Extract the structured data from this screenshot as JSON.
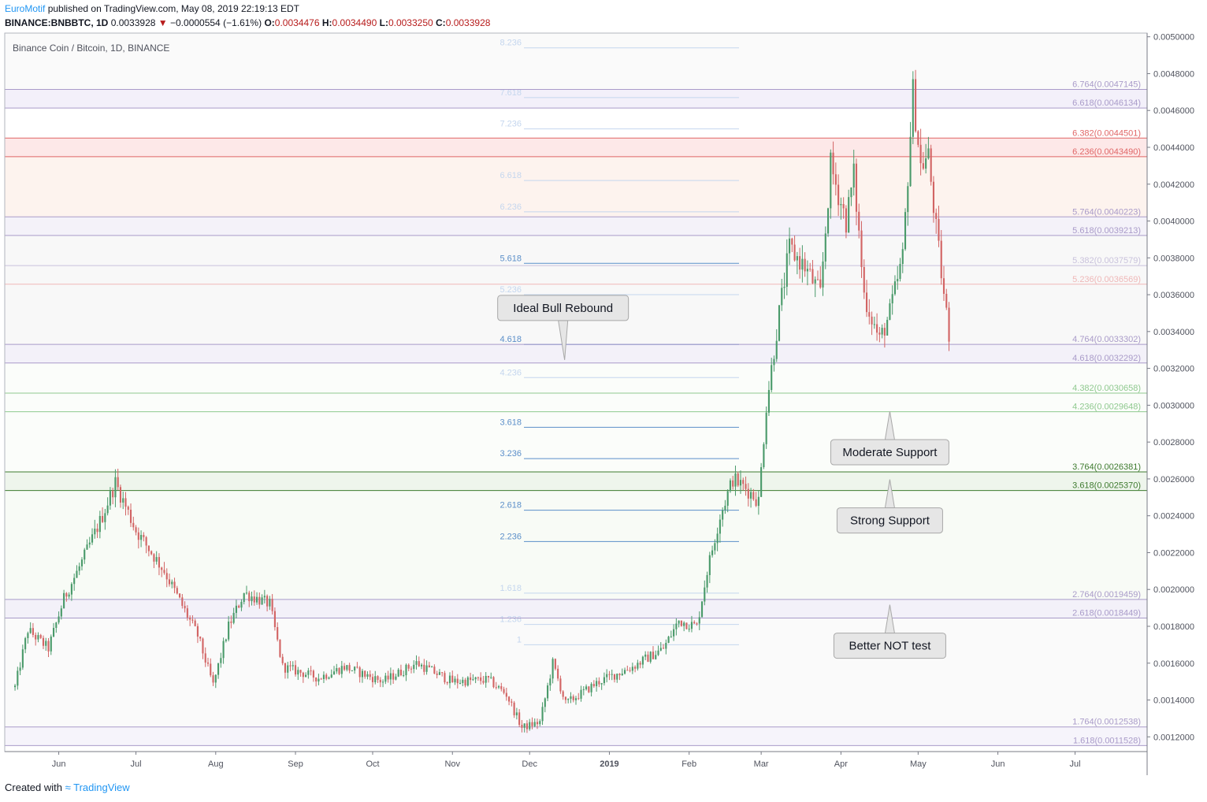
{
  "header": {
    "author": "EuroMotif",
    "published_text": "published on TradingView.com, May 08, 2019 22:19:13 EDT",
    "symbol": "BINANCE:BNBBTC, 1D",
    "last": "0.0033928",
    "change_arrow": "▼",
    "change": "−0.0000554 (−1.61%)",
    "open_label": "O:",
    "open": "0.0034476",
    "high_label": "H:",
    "high": "0.0034490",
    "low_label": "L:",
    "low": "0.0033250",
    "close_label": "C:",
    "close": "0.0033928"
  },
  "footer": {
    "created_with": "Created with",
    "brand": "TradingView"
  },
  "chart_data": {
    "type": "candlestick",
    "title": "Binance Coin / Bitcoin, 1D, BINANCE",
    "x_ticks": [
      "Jun",
      "Jul",
      "Aug",
      "Sep",
      "Oct",
      "Nov",
      "Dec",
      "2019",
      "Feb",
      "Mar",
      "Apr",
      "May",
      "Jun",
      "Jul"
    ],
    "y_ticks": [
      "0.0050000",
      "0.0048000",
      "0.0046000",
      "0.0044000",
      "0.0042000",
      "0.0040000",
      "0.0038000",
      "0.0036000",
      "0.0034000",
      "0.0032000",
      "0.0030000",
      "0.0028000",
      "0.0026000",
      "0.0024000",
      "0.0022000",
      "0.0020000",
      "0.0018000",
      "0.0016000",
      "0.0014000",
      "0.0012000"
    ],
    "ylim": [
      0.00112,
      0.00502
    ],
    "price_path": [
      {
        "date": "2018-05-15",
        "price": 0.00147
      },
      {
        "date": "2018-05-20",
        "price": 0.00178
      },
      {
        "date": "2018-05-28",
        "price": 0.00168
      },
      {
        "date": "2018-06-03",
        "price": 0.00195
      },
      {
        "date": "2018-06-10",
        "price": 0.00215
      },
      {
        "date": "2018-06-18",
        "price": 0.0024
      },
      {
        "date": "2018-06-23",
        "price": 0.00258
      },
      {
        "date": "2018-07-01",
        "price": 0.00232
      },
      {
        "date": "2018-07-12",
        "price": 0.0021
      },
      {
        "date": "2018-07-25",
        "price": 0.00175
      },
      {
        "date": "2018-07-31",
        "price": 0.00148
      },
      {
        "date": "2018-08-06",
        "price": 0.0018
      },
      {
        "date": "2018-08-12",
        "price": 0.00198
      },
      {
        "date": "2018-08-22",
        "price": 0.00192
      },
      {
        "date": "2018-08-27",
        "price": 0.00158
      },
      {
        "date": "2018-09-10",
        "price": 0.00152
      },
      {
        "date": "2018-09-20",
        "price": 0.00158
      },
      {
        "date": "2018-10-05",
        "price": 0.0015
      },
      {
        "date": "2018-10-18",
        "price": 0.0016
      },
      {
        "date": "2018-11-01",
        "price": 0.0015
      },
      {
        "date": "2018-11-15",
        "price": 0.00151
      },
      {
        "date": "2018-11-22",
        "price": 0.00143
      },
      {
        "date": "2018-11-28",
        "price": 0.00125
      },
      {
        "date": "2018-12-05",
        "price": 0.00128
      },
      {
        "date": "2018-12-10",
        "price": 0.0016
      },
      {
        "date": "2018-12-15",
        "price": 0.00138
      },
      {
        "date": "2018-12-28",
        "price": 0.0015
      },
      {
        "date": "2019-01-10",
        "price": 0.00158
      },
      {
        "date": "2019-01-22",
        "price": 0.00168
      },
      {
        "date": "2019-01-28",
        "price": 0.00183
      },
      {
        "date": "2019-02-04",
        "price": 0.0018
      },
      {
        "date": "2019-02-08",
        "price": 0.0021
      },
      {
        "date": "2019-02-13",
        "price": 0.0024
      },
      {
        "date": "2019-02-18",
        "price": 0.0026
      },
      {
        "date": "2019-02-23",
        "price": 0.00255
      },
      {
        "date": "2019-02-28",
        "price": 0.00248
      },
      {
        "date": "2019-03-03",
        "price": 0.003
      },
      {
        "date": "2019-03-08",
        "price": 0.0035
      },
      {
        "date": "2019-03-12",
        "price": 0.00385
      },
      {
        "date": "2019-03-18",
        "price": 0.00375
      },
      {
        "date": "2019-03-24",
        "price": 0.0036
      },
      {
        "date": "2019-03-28",
        "price": 0.0043
      },
      {
        "date": "2019-04-03",
        "price": 0.004
      },
      {
        "date": "2019-04-06",
        "price": 0.00425
      },
      {
        "date": "2019-04-10",
        "price": 0.0036
      },
      {
        "date": "2019-04-16",
        "price": 0.00335
      },
      {
        "date": "2019-04-20",
        "price": 0.0035
      },
      {
        "date": "2019-04-25",
        "price": 0.0038
      },
      {
        "date": "2019-04-29",
        "price": 0.0047
      },
      {
        "date": "2019-05-02",
        "price": 0.0043
      },
      {
        "date": "2019-05-05",
        "price": 0.00435
      },
      {
        "date": "2019-05-08",
        "price": 0.00395
      },
      {
        "date": "2019-05-11",
        "price": 0.0036
      },
      {
        "date": "2019-05-13",
        "price": 0.00339
      }
    ],
    "fib_left": [
      {
        "label": "8.236",
        "price": 0.00494,
        "color": "#c4d6ee"
      },
      {
        "label": "7.618",
        "price": 0.00467,
        "color": "#c4d6ee"
      },
      {
        "label": "7.236",
        "price": 0.0045,
        "color": "#c4d6ee"
      },
      {
        "label": "6.618",
        "price": 0.00422,
        "color": "#c4d6ee"
      },
      {
        "label": "6.236",
        "price": 0.00405,
        "color": "#c4d6ee"
      },
      {
        "label": "5.618",
        "price": 0.00377,
        "color": "#5b8fc9"
      },
      {
        "label": "5.236",
        "price": 0.0036,
        "color": "#c4d6ee"
      },
      {
        "label": "4.618",
        "price": 0.00333,
        "color": "#5b8fc9"
      },
      {
        "label": "4.236",
        "price": 0.00315,
        "color": "#c4d6ee"
      },
      {
        "label": "3.618",
        "price": 0.00288,
        "color": "#5b8fc9"
      },
      {
        "label": "3.236",
        "price": 0.00271,
        "color": "#5b8fc9"
      },
      {
        "label": "2.618",
        "price": 0.00243,
        "color": "#5b8fc9"
      },
      {
        "label": "2.236",
        "price": 0.00226,
        "color": "#5b8fc9"
      },
      {
        "label": "1.618",
        "price": 0.00198,
        "color": "#c4d6ee"
      },
      {
        "label": "1.236",
        "price": 0.00181,
        "color": "#c4d6ee"
      },
      {
        "label": "1",
        "price": 0.0017,
        "color": "#c4d6ee"
      }
    ],
    "fib_right": [
      {
        "label": "6.764(0.0047145)",
        "price": 0.0047145,
        "color": "#a99bc9"
      },
      {
        "label": "6.618(0.0046134)",
        "price": 0.0046134,
        "color": "#a99bc9"
      },
      {
        "label": "6.382(0.0044501)",
        "price": 0.0044501,
        "color": "#e06666"
      },
      {
        "label": "6.236(0.0043490)",
        "price": 0.004349,
        "color": "#e06666"
      },
      {
        "label": "5.764(0.0040223)",
        "price": 0.0040223,
        "color": "#a99bc9"
      },
      {
        "label": "5.618(0.0039213)",
        "price": 0.0039213,
        "color": "#a99bc9"
      },
      {
        "label": "5.382(0.0037579)",
        "price": 0.0037579,
        "color": "#c9c2dc"
      },
      {
        "label": "5.236(0.0036569)",
        "price": 0.0036569,
        "color": "#efb8b8"
      },
      {
        "label": "4.764(0.0033302)",
        "price": 0.0033302,
        "color": "#a99bc9"
      },
      {
        "label": "4.618(0.0032292)",
        "price": 0.0032292,
        "color": "#a99bc9"
      },
      {
        "label": "4.382(0.0030658)",
        "price": 0.0030658,
        "color": "#8fc98f"
      },
      {
        "label": "4.236(0.0029648)",
        "price": 0.0029648,
        "color": "#8fc98f"
      },
      {
        "label": "3.764(0.0026381)",
        "price": 0.0026381,
        "color": "#3d7a2e"
      },
      {
        "label": "3.618(0.0025370)",
        "price": 0.002537,
        "color": "#3d7a2e"
      },
      {
        "label": "2.764(0.0019459)",
        "price": 0.0019459,
        "color": "#a99bc9"
      },
      {
        "label": "2.618(0.0018449)",
        "price": 0.0018449,
        "color": "#a99bc9"
      },
      {
        "label": "1.764(0.0012538)",
        "price": 0.0012538,
        "color": "#a99bc9"
      },
      {
        "label": "1.618(0.0011528)",
        "price": 0.0011528,
        "color": "#a99bc9"
      }
    ],
    "callouts": [
      {
        "text": "Ideal Bull Rebound",
        "anchor_date": "2018-12-14",
        "anchor_price": 0.00328,
        "pointer": "down"
      },
      {
        "text": "Moderate Support",
        "anchor_date": "2019-04-20",
        "anchor_price": 0.00295,
        "pointer": "up"
      },
      {
        "text": "Strong Support",
        "anchor_date": "2019-04-20",
        "anchor_price": 0.00258,
        "pointer": "up"
      },
      {
        "text": "Better NOT test",
        "anchor_date": "2019-04-20",
        "anchor_price": 0.0019,
        "pointer": "up"
      }
    ]
  }
}
